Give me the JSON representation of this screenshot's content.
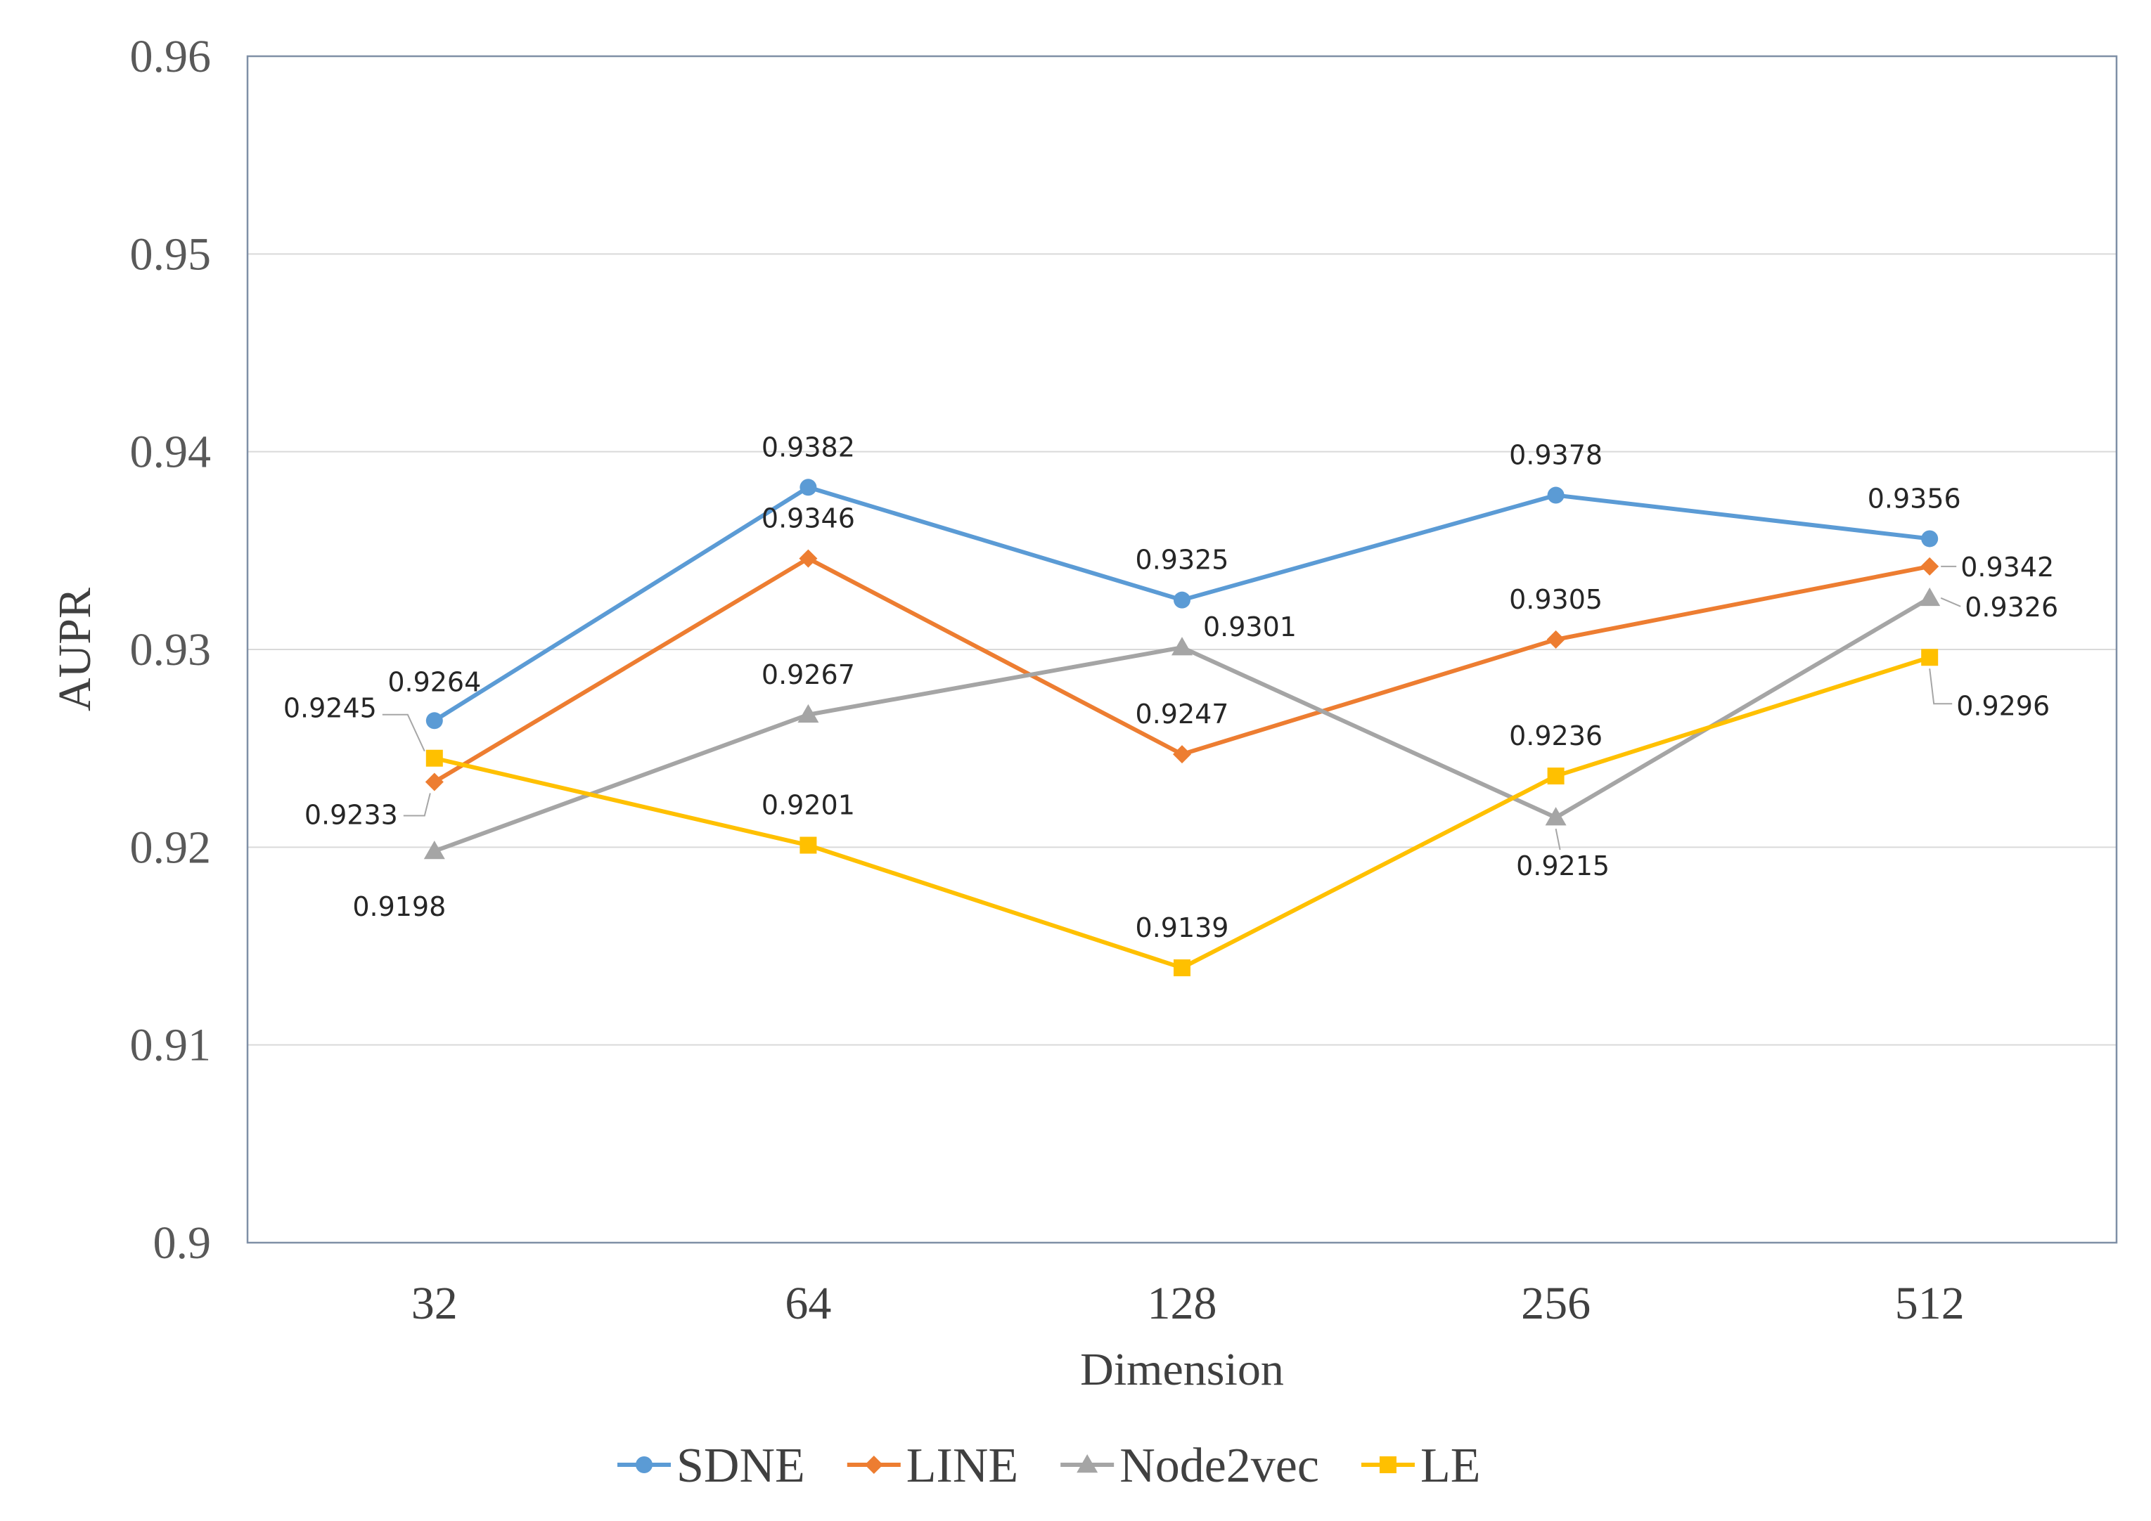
{
  "chart_data": {
    "type": "line",
    "title": "",
    "xlabel": "Dimension",
    "ylabel": "AUPR",
    "categories": [
      "32",
      "64",
      "128",
      "256",
      "512"
    ],
    "ylim": [
      0.9,
      0.96
    ],
    "yticks": [
      "0.9",
      "0.91",
      "0.92",
      "0.93",
      "0.94",
      "0.95",
      "0.96"
    ],
    "grid": true,
    "legend_position": "bottom",
    "series": [
      {
        "name": "SDNE",
        "color": "#5b9bd5",
        "marker": "circle",
        "values": [
          0.9264,
          0.9382,
          0.9325,
          0.9378,
          0.9356
        ],
        "labels": [
          "0.9264",
          "0.9382",
          "0.9325",
          "0.9378",
          "0.9356"
        ]
      },
      {
        "name": "LINE",
        "color": "#ed7d31",
        "marker": "diamond",
        "values": [
          0.9233,
          0.9346,
          0.9247,
          0.9305,
          0.9342
        ],
        "labels": [
          "0.9233",
          "0.9346",
          "0.9247",
          "0.9305",
          "0.9342"
        ]
      },
      {
        "name": "Node2vec",
        "color": "#a5a5a5",
        "marker": "triangle",
        "values": [
          0.9198,
          0.9267,
          0.9301,
          0.9215,
          0.9326
        ],
        "labels": [
          "0.9198",
          "0.9267",
          "0.9301",
          "0.9215",
          "0.9326"
        ]
      },
      {
        "name": "LE",
        "color": "#ffc000",
        "marker": "square",
        "values": [
          0.9245,
          0.9201,
          0.9139,
          0.9236,
          0.9296
        ],
        "labels": [
          "0.9245",
          "0.9201",
          "0.9139",
          "0.9236",
          "0.9296"
        ]
      }
    ]
  }
}
